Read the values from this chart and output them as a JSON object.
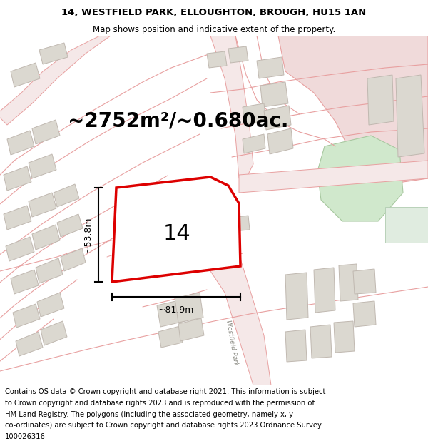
{
  "title_line1": "14, WESTFIELD PARK, ELLOUGHTON, BROUGH, HU15 1AN",
  "title_line2": "Map shows position and indicative extent of the property.",
  "area_text": "~2752m²/~0.680ac.",
  "dim_height": "~53.8m",
  "dim_width": "~81.9m",
  "label_number": "14",
  "road_label": "Westfield Park",
  "footer_lines": [
    "Contains OS data © Crown copyright and database right 2021. This information is subject",
    "to Crown copyright and database rights 2023 and is reproduced with the permission of",
    "HM Land Registry. The polygons (including the associated geometry, namely x, y",
    "co-ordinates) are subject to Crown copyright and database rights 2023 Ordnance Survey",
    "100026316."
  ],
  "map_bg": "#f9f9f7",
  "plot_outline_color": "#dd0000",
  "road_line_color": "#e8a0a0",
  "road_fill_color": "#f5e8e8",
  "building_color": "#dbd8d0",
  "building_outline": "#c0b8b0",
  "green_area_color": "#d0e8cc",
  "pink_area_color": "#f0dada",
  "title_fontsize": 9.5,
  "subtitle_fontsize": 8.5,
  "area_fontsize": 20,
  "dim_fontsize": 9,
  "label_fontsize": 22,
  "footer_fontsize": 7.2,
  "road_label_fontsize": 6.5
}
